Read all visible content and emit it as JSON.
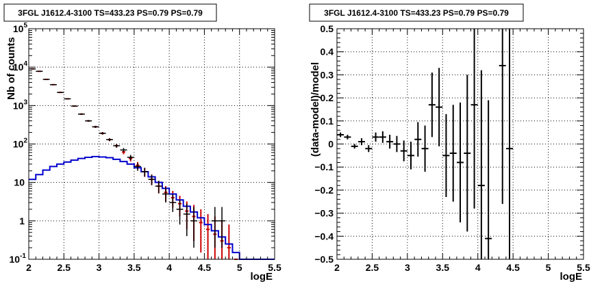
{
  "chart_data": [
    {
      "type": "line",
      "title": "3FGL J1612.4-3100 TS=433.23 PS=0.79 PS=0.79",
      "xlabel": "logE",
      "ylabel": "Nb of counts",
      "xlim": [
        2,
        5.5
      ],
      "ylim": [
        0.1,
        100000
      ],
      "yscale": "log",
      "grid": true,
      "x_ticks": [
        "2",
        "2.5",
        "3",
        "3.5",
        "4",
        "4.5",
        "5",
        "5.5"
      ],
      "y_ticks": [
        {
          "v": 0.1,
          "b": "10",
          "e": "-1"
        },
        {
          "v": 1,
          "b": "1",
          "e": ""
        },
        {
          "v": 10,
          "b": "10",
          "e": ""
        },
        {
          "v": 100,
          "b": "10",
          "e": "2"
        },
        {
          "v": 1000,
          "b": "10",
          "e": "3"
        },
        {
          "v": 10000,
          "b": "10",
          "e": "4"
        },
        {
          "v": 100000,
          "b": "10",
          "e": "5"
        }
      ],
      "series": [
        {
          "kind": "model_total_step",
          "color": "#cc0000",
          "bins": [
            [
              2.0,
              9000
            ],
            [
              2.1,
              7800
            ],
            [
              2.2,
              4800
            ],
            [
              2.3,
              3500
            ],
            [
              2.4,
              2200
            ],
            [
              2.5,
              1500
            ],
            [
              2.6,
              970
            ],
            [
              2.7,
              600
            ],
            [
              2.8,
              400
            ],
            [
              2.9,
              280
            ],
            [
              3.0,
              190
            ],
            [
              3.1,
              130
            ],
            [
              3.2,
              90
            ],
            [
              3.3,
              62
            ],
            [
              3.4,
              42
            ],
            [
              3.5,
              28
            ],
            [
              3.6,
              19
            ],
            [
              3.7,
              12
            ],
            [
              3.8,
              8
            ],
            [
              3.9,
              5.5
            ],
            [
              4.0,
              4
            ],
            [
              4.1,
              2.8
            ],
            [
              4.2,
              1.8
            ],
            [
              4.3,
              1.3
            ],
            [
              4.4,
              0.9
            ],
            [
              4.5,
              0.6
            ],
            [
              4.6,
              0.45
            ],
            [
              4.7,
              0.3
            ],
            [
              4.8,
              0.2
            ],
            [
              4.9,
              0.1
            ]
          ]
        },
        {
          "kind": "model_errors",
          "color": "#cc0000",
          "points": [
            [
              2.05,
              9000,
              9100,
              8900
            ],
            [
              2.15,
              7800,
              7900,
              7700
            ],
            [
              2.25,
              4800,
              4900,
              4700
            ],
            [
              2.35,
              3500,
              3580,
              3420
            ],
            [
              2.45,
              2200,
              2260,
              2140
            ],
            [
              2.55,
              1500,
              1540,
              1460
            ],
            [
              2.65,
              970,
              1000,
              940
            ],
            [
              2.75,
              600,
              625,
              575
            ],
            [
              2.85,
              400,
              420,
              380
            ],
            [
              2.95,
              280,
              297,
              263
            ],
            [
              3.05,
              190,
              204,
              176
            ],
            [
              3.15,
              130,
              141,
              119
            ],
            [
              3.25,
              90,
              100,
              81
            ],
            [
              3.35,
              62,
              70,
              54
            ],
            [
              3.45,
              42,
              49,
              35
            ],
            [
              3.55,
              28,
              34,
              22
            ],
            [
              3.65,
              19,
              24,
              14
            ],
            [
              3.75,
              12,
              16,
              8.5
            ],
            [
              3.85,
              8,
              11,
              5.2
            ],
            [
              3.95,
              5.5,
              8,
              3.2
            ],
            [
              4.05,
              4,
              6,
              2.2
            ],
            [
              4.15,
              2.8,
              4.5,
              1.3
            ],
            [
              4.25,
              1.8,
              3.2,
              0.6
            ],
            [
              4.35,
              1.3,
              2.6,
              0.3
            ],
            [
              4.45,
              0.9,
              2,
              0.15
            ],
            [
              4.55,
              0.6,
              1.5,
              0.1
            ],
            [
              4.65,
              0.45,
              1.3,
              0.1
            ],
            [
              4.75,
              0.3,
              1,
              0.1
            ],
            [
              4.85,
              0.2,
              0.8,
              0.1
            ]
          ]
        },
        {
          "kind": "source_model_step",
          "color": "#0000cc",
          "bins": [
            [
              2.0,
              12
            ],
            [
              2.1,
              16
            ],
            [
              2.2,
              21
            ],
            [
              2.3,
              26
            ],
            [
              2.4,
              30
            ],
            [
              2.5,
              34
            ],
            [
              2.6,
              38
            ],
            [
              2.7,
              42
            ],
            [
              2.8,
              45
            ],
            [
              2.9,
              47
            ],
            [
              3.0,
              46
            ],
            [
              3.1,
              44
            ],
            [
              3.2,
              40
            ],
            [
              3.3,
              35
            ],
            [
              3.4,
              30
            ],
            [
              3.5,
              24
            ],
            [
              3.6,
              19
            ],
            [
              3.7,
              14
            ],
            [
              3.8,
              10
            ],
            [
              3.9,
              7
            ],
            [
              4.0,
              5
            ],
            [
              4.1,
              3.5
            ],
            [
              4.2,
              2.4
            ],
            [
              4.3,
              1.7
            ],
            [
              4.4,
              1.2
            ],
            [
              4.5,
              0.8
            ],
            [
              4.6,
              0.55
            ],
            [
              4.7,
              0.38
            ],
            [
              4.8,
              0.25
            ],
            [
              4.9,
              0.15
            ],
            [
              5.0,
              0.1
            ],
            [
              5.1,
              0.1
            ],
            [
              5.2,
              0.1
            ],
            [
              5.3,
              0.1
            ],
            [
              5.4,
              0.1
            ]
          ]
        },
        {
          "kind": "data_points",
          "color": "#000000",
          "points": [
            [
              2.05,
              9000,
              9100,
              8900
            ],
            [
              2.15,
              7800,
              7900,
              7700
            ],
            [
              2.25,
              4800,
              4870,
              4730
            ],
            [
              2.35,
              3500,
              3560,
              3440
            ],
            [
              2.45,
              2200,
              2250,
              2150
            ],
            [
              2.55,
              1500,
              1540,
              1460
            ],
            [
              2.65,
              970,
              1000,
              940
            ],
            [
              2.75,
              600,
              625,
              575
            ],
            [
              2.85,
              400,
              420,
              380
            ],
            [
              2.95,
              280,
              297,
              263
            ],
            [
              3.05,
              190,
              204,
              176
            ],
            [
              3.15,
              130,
              141,
              119
            ],
            [
              3.25,
              90,
              100,
              80
            ],
            [
              3.35,
              70,
              79,
              61
            ],
            [
              3.45,
              45,
              52,
              38
            ],
            [
              3.55,
              26,
              32,
              20
            ],
            [
              3.65,
              19,
              24,
              14
            ],
            [
              3.75,
              12,
              16,
              8.5
            ],
            [
              3.85,
              8,
              11,
              5.2
            ],
            [
              3.95,
              5,
              7.5,
              3
            ],
            [
              4.05,
              3,
              4.8,
              1.7
            ],
            [
              4.15,
              2,
              3.5,
              0.8
            ],
            [
              4.25,
              1.5,
              2.8,
              0.4
            ],
            [
              4.35,
              1,
              2.3,
              0.2
            ],
            [
              4.65,
              1,
              2.3,
              0.2
            ],
            [
              4.75,
              1,
              2.3,
              0.2
            ]
          ]
        }
      ]
    },
    {
      "type": "scatter",
      "title": "3FGL J1612.4-3100 TS=433.23 PS=0.79 PS=0.79",
      "xlabel": "logE",
      "ylabel": "(data-model)/model",
      "xlim": [
        2,
        5.5
      ],
      "ylim": [
        -0.5,
        0.5
      ],
      "grid": true,
      "x_ticks": [
        "2",
        "2.5",
        "3",
        "3.5",
        "4",
        "4.5",
        "5",
        "5.5"
      ],
      "y_ticks": [
        "0.5",
        "0.4",
        "0.3",
        "0.2",
        "0.1",
        "0",
        "−0.1",
        "−0.2",
        "−0.3",
        "−0.4",
        "−0.5"
      ],
      "points": [
        [
          2.05,
          0.04,
          0.01
        ],
        [
          2.15,
          0.03,
          0.01
        ],
        [
          2.25,
          -0.01,
          0.01
        ],
        [
          2.35,
          0.01,
          0.015
        ],
        [
          2.45,
          -0.02,
          0.015
        ],
        [
          2.55,
          0.03,
          0.02
        ],
        [
          2.65,
          0.03,
          0.025
        ],
        [
          2.75,
          0.01,
          0.03
        ],
        [
          2.85,
          0.0,
          0.035
        ],
        [
          2.95,
          -0.03,
          0.045
        ],
        [
          3.05,
          -0.05,
          0.06
        ],
        [
          3.15,
          0.02,
          0.075
        ],
        [
          3.25,
          -0.02,
          0.1
        ],
        [
          3.35,
          0.17,
          0.14
        ],
        [
          3.45,
          0.16,
          0.17
        ],
        [
          3.55,
          -0.05,
          0.18
        ],
        [
          3.65,
          -0.04,
          0.21
        ],
        [
          3.75,
          -0.08,
          0.26
        ],
        [
          3.85,
          -0.04,
          0.34
        ],
        [
          3.95,
          0.17,
          0.45
        ],
        [
          4.05,
          -0.18,
          0.5
        ],
        [
          4.15,
          -0.41,
          0.6
        ],
        [
          4.35,
          0.34,
          0.6
        ],
        [
          4.45,
          -0.02,
          0.6
        ]
      ]
    }
  ]
}
